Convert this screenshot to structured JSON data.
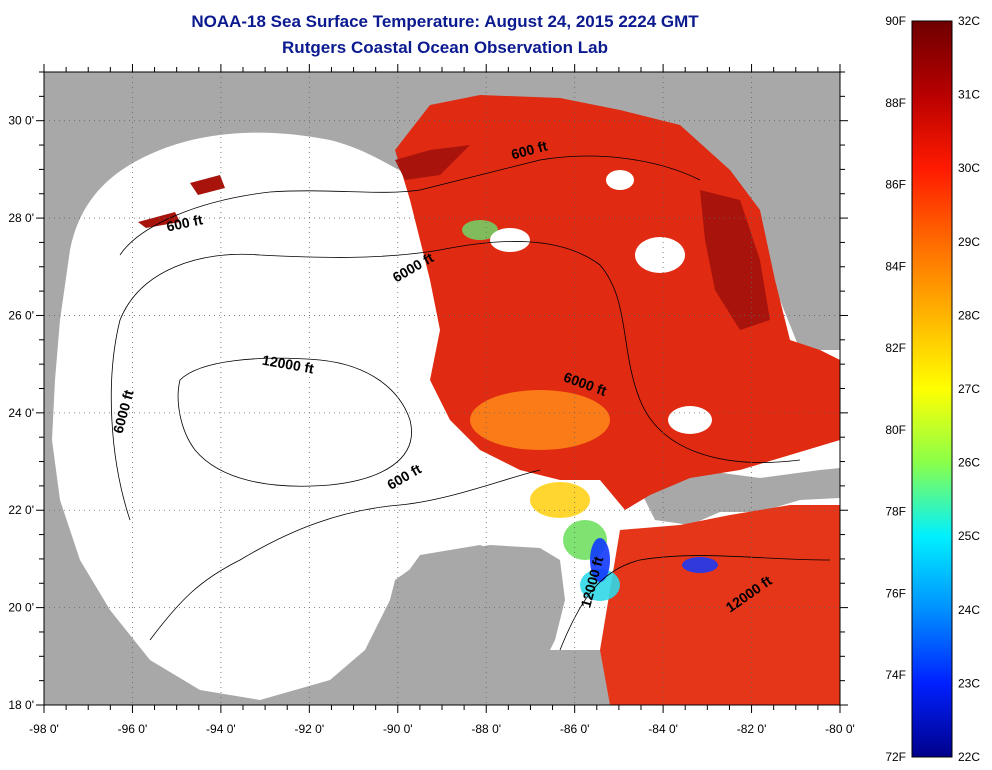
{
  "title": "NOAA-18 Sea Surface Temperature:  August 24, 2015 2224 GMT",
  "subtitle": "Rutgers Coastal Ocean Observation Lab",
  "map": {
    "lon_ticks": [
      "-98 0'",
      "-96 0'",
      "-94 0'",
      "-92 0'",
      "-90 0'",
      "-88 0'",
      "-86 0'",
      "-84 0'",
      "-82 0'",
      "-80 0'"
    ],
    "lat_ticks": [
      "30 0'",
      "28 0'",
      "26 0'",
      "24 0'",
      "22 0'",
      "20 0'",
      "18 0'"
    ],
    "lon_range": [
      -98,
      -80
    ],
    "lat_range": [
      18,
      31
    ],
    "grid": "dotted",
    "depth_labels": [
      {
        "text": "600 ft",
        "lon": -87.0,
        "lat": 29.3
      },
      {
        "text": "600 ft",
        "lon": -94.8,
        "lat": 27.8
      },
      {
        "text": "6000 ft",
        "lon": -89.6,
        "lat": 26.9
      },
      {
        "text": "12000 ft",
        "lon": -92.5,
        "lat": 24.9
      },
      {
        "text": "6000 ft",
        "lon": -85.8,
        "lat": 24.5
      },
      {
        "text": "6000 ft",
        "lon": -96.1,
        "lat": 24.0
      },
      {
        "text": "600 ft",
        "lon": -89.8,
        "lat": 22.6
      },
      {
        "text": "12000 ft",
        "lon": -85.5,
        "lat": 20.5
      },
      {
        "text": "12000 ft",
        "lon": -82.0,
        "lat": 20.2
      }
    ]
  },
  "colorbar": {
    "f_labels": [
      "90F",
      "88F",
      "86F",
      "84F",
      "82F",
      "80F",
      "78F",
      "76F",
      "74F",
      "72F"
    ],
    "c_labels": [
      "32C",
      "31C",
      "30C",
      "29C",
      "28C",
      "27C",
      "26C",
      "25C",
      "24C",
      "23C",
      "22C"
    ],
    "range_f": [
      72,
      90
    ],
    "range_c": [
      22,
      32
    ],
    "colors": [
      "#7a0000",
      "#c00000",
      "#ff2000",
      "#ff7000",
      "#ffc000",
      "#ffff00",
      "#80ff60",
      "#00ffff",
      "#0090ff",
      "#0020ff",
      "#00008f"
    ]
  },
  "colors": {
    "land": "#a8a8a8",
    "ocean_nodata": "#ffffff",
    "warm": "#e12810",
    "hot": "#a81008",
    "title_blue": "#0b1a8f"
  }
}
